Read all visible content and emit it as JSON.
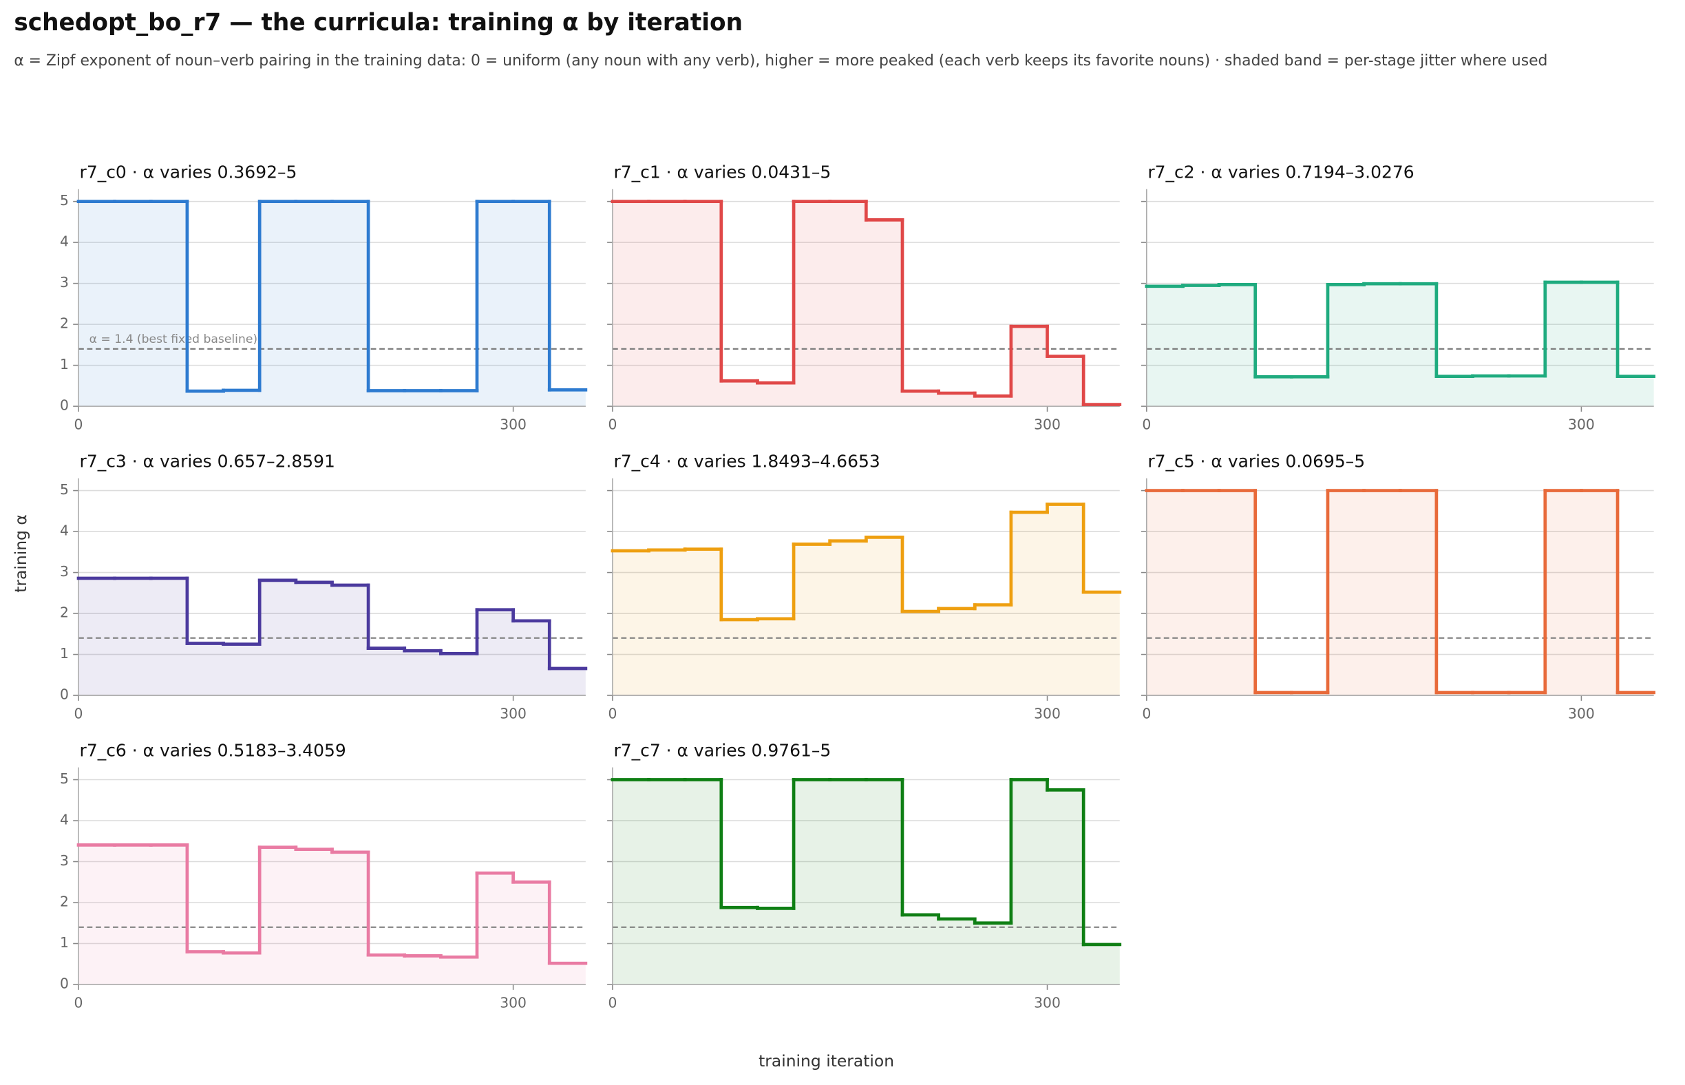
{
  "title": "schedopt_bo_r7 — the curricula: training α by iteration",
  "subtitle": "α = Zipf exponent of noun–verb pairing in the training data: 0 = uniform (any noun with any verb), higher = more peaked (each verb keeps its favorite nouns) · shaded band = per-stage jitter where used",
  "x_label": "training iteration",
  "y_label": "training α",
  "chart_data": [
    {
      "type": "step",
      "title": "r7_c0   ·   α varies 0.3692–5",
      "color": "#2e7bd0",
      "x": [
        0,
        25,
        50,
        75,
        100,
        125,
        150,
        175,
        200,
        225,
        250,
        275,
        300,
        325
      ],
      "values": [
        5,
        5,
        5,
        0.3692,
        0.39,
        5,
        5,
        5,
        0.38,
        0.38,
        0.38,
        5,
        5,
        0.4
      ],
      "xlim": [
        0,
        350
      ],
      "ylim": [
        0,
        5.3
      ],
      "xticks": [
        0,
        300
      ],
      "yticks": [
        0,
        1,
        2,
        3,
        4,
        5
      ],
      "grid": true,
      "fill": true,
      "reference_line": 1.4,
      "annotation": "α = 1.4 (best fixed baseline)"
    },
    {
      "type": "step",
      "title": "r7_c1   ·   α varies 0.0431–5",
      "color": "#e04848",
      "x": [
        0,
        25,
        50,
        75,
        100,
        125,
        150,
        175,
        200,
        225,
        250,
        275,
        300,
        325
      ],
      "values": [
        5,
        5,
        5,
        0.62,
        0.57,
        5,
        5,
        4.55,
        0.37,
        0.32,
        0.25,
        1.95,
        1.22,
        0.0431
      ],
      "xlim": [
        0,
        350
      ],
      "ylim": [
        0,
        5.3
      ],
      "xticks": [
        0,
        300
      ],
      "yticks": [
        0,
        1,
        2,
        3,
        4,
        5
      ],
      "grid": true,
      "fill": true,
      "reference_line": 1.4
    },
    {
      "type": "step",
      "title": "r7_c2   ·   α varies 0.7194–3.0276",
      "color": "#1fab7f",
      "x": [
        0,
        25,
        50,
        75,
        100,
        125,
        150,
        175,
        200,
        225,
        250,
        275,
        300,
        325
      ],
      "values": [
        2.93,
        2.95,
        2.97,
        0.7194,
        0.72,
        2.97,
        2.99,
        2.99,
        0.73,
        0.74,
        0.74,
        3.0276,
        3.0276,
        0.73
      ],
      "xlim": [
        0,
        350
      ],
      "ylim": [
        0,
        5.3
      ],
      "xticks": [
        0,
        300
      ],
      "yticks": [
        0,
        1,
        2,
        3,
        4,
        5
      ],
      "grid": true,
      "fill": true,
      "reference_line": 1.4
    },
    {
      "type": "step",
      "title": "r7_c3   ·   α varies 0.657–2.8591",
      "color": "#4b3a9e",
      "x": [
        0,
        25,
        50,
        75,
        100,
        125,
        150,
        175,
        200,
        225,
        250,
        275,
        300,
        325
      ],
      "values": [
        2.8591,
        2.8591,
        2.8591,
        1.27,
        1.25,
        2.81,
        2.76,
        2.69,
        1.15,
        1.09,
        1.02,
        2.09,
        1.82,
        0.657
      ],
      "xlim": [
        0,
        350
      ],
      "ylim": [
        0,
        5.3
      ],
      "xticks": [
        0,
        300
      ],
      "yticks": [
        0,
        1,
        2,
        3,
        4,
        5
      ],
      "grid": true,
      "fill": true,
      "reference_line": 1.4
    },
    {
      "type": "step",
      "title": "r7_c4   ·   α varies 1.8493–4.6653",
      "color": "#ee9f10",
      "x": [
        0,
        25,
        50,
        75,
        100,
        125,
        150,
        175,
        200,
        225,
        250,
        275,
        300,
        325
      ],
      "values": [
        3.53,
        3.55,
        3.57,
        1.8493,
        1.87,
        3.69,
        3.77,
        3.86,
        2.05,
        2.12,
        2.21,
        4.47,
        4.6653,
        2.52
      ],
      "xlim": [
        0,
        350
      ],
      "ylim": [
        0,
        5.3
      ],
      "xticks": [
        0,
        300
      ],
      "yticks": [
        0,
        1,
        2,
        3,
        4,
        5
      ],
      "grid": true,
      "fill": true,
      "reference_line": 1.4
    },
    {
      "type": "step",
      "title": "r7_c5   ·   α varies 0.0695–5",
      "color": "#e86a3a",
      "x": [
        0,
        25,
        50,
        75,
        100,
        125,
        150,
        175,
        200,
        225,
        250,
        275,
        300,
        325
      ],
      "values": [
        5,
        5,
        5,
        0.0695,
        0.0695,
        5,
        5,
        5,
        0.0695,
        0.0695,
        0.0695,
        5,
        5,
        0.0695
      ],
      "xlim": [
        0,
        350
      ],
      "ylim": [
        0,
        5.3
      ],
      "xticks": [
        0,
        300
      ],
      "yticks": [
        0,
        1,
        2,
        3,
        4,
        5
      ],
      "grid": true,
      "fill": true,
      "reference_line": 1.4
    },
    {
      "type": "step",
      "title": "r7_c6   ·   α varies 0.5183–3.4059",
      "color": "#e97ba3",
      "x": [
        0,
        25,
        50,
        75,
        100,
        125,
        150,
        175,
        200,
        225,
        250,
        275,
        300,
        325
      ],
      "values": [
        3.4059,
        3.4059,
        3.4059,
        0.8,
        0.77,
        3.35,
        3.3,
        3.23,
        0.72,
        0.7,
        0.67,
        2.72,
        2.5,
        0.5183
      ],
      "xlim": [
        0,
        350
      ],
      "ylim": [
        0,
        5.3
      ],
      "xticks": [
        0,
        300
      ],
      "yticks": [
        0,
        1,
        2,
        3,
        4,
        5
      ],
      "grid": true,
      "fill": true,
      "reference_line": 1.4
    },
    {
      "type": "step",
      "title": "r7_c7   ·   α varies 0.9761–5",
      "color": "#0f7f14",
      "x": [
        0,
        25,
        50,
        75,
        100,
        125,
        150,
        175,
        200,
        225,
        250,
        275,
        300,
        325
      ],
      "values": [
        5,
        5,
        5,
        1.88,
        1.86,
        5,
        5,
        5,
        1.7,
        1.6,
        1.5,
        5,
        4.75,
        0.9761
      ],
      "xlim": [
        0,
        350
      ],
      "ylim": [
        0,
        5.3
      ],
      "xticks": [
        0,
        300
      ],
      "yticks": [
        0,
        1,
        2,
        3,
        4,
        5
      ],
      "grid": true,
      "fill": true,
      "reference_line": 1.4
    }
  ]
}
